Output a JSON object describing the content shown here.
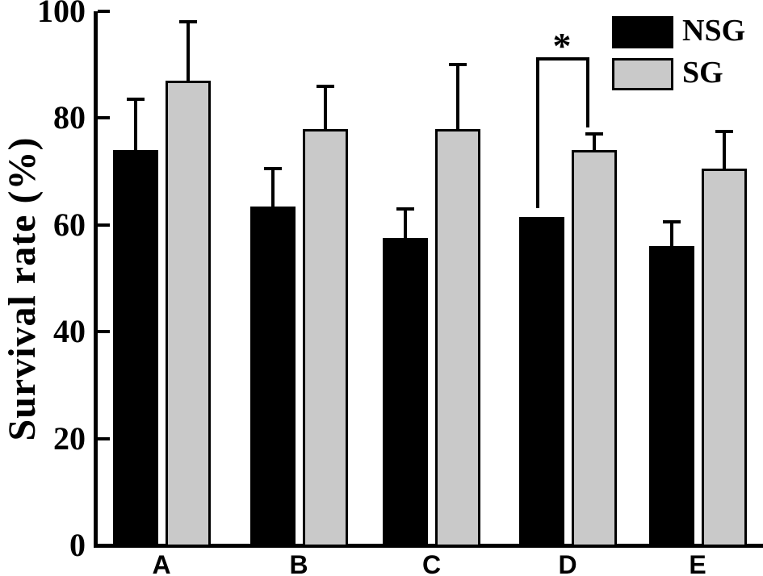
{
  "chart_data": {
    "type": "bar",
    "title": "",
    "xlabel": "",
    "ylabel": "Survival rate (%)",
    "categories": [
      "A",
      "B",
      "C",
      "D",
      "E"
    ],
    "series": [
      {
        "name": "NSG",
        "color": "#000000",
        "values": [
          74,
          63.5,
          57.5,
          61.5,
          56
        ],
        "errors_plus": [
          9.5,
          7,
          5.5,
          null,
          4.5
        ]
      },
      {
        "name": "SG",
        "color": "#c9c9c9",
        "values": [
          87,
          78,
          78,
          74,
          70.5
        ],
        "errors_plus": [
          11,
          8,
          12,
          3,
          7
        ]
      }
    ],
    "ylim": [
      0,
      100
    ],
    "yticks": [
      0,
      20,
      40,
      60,
      80,
      100
    ],
    "grid": false,
    "legend_position": "top-right",
    "error_bars": "upper-only",
    "annotation": {
      "type": "significance-bracket",
      "group": "D",
      "between": [
        "NSG",
        "SG"
      ],
      "label": "*",
      "bracket_top_value": 91.4,
      "left_arm_bottom_value": 63.1,
      "right_arm_bottom_value": 78.2
    }
  },
  "legend": {
    "items": [
      {
        "label": "NSG",
        "color": "#000000"
      },
      {
        "label": "SG",
        "color": "#c9c9c9"
      }
    ]
  }
}
